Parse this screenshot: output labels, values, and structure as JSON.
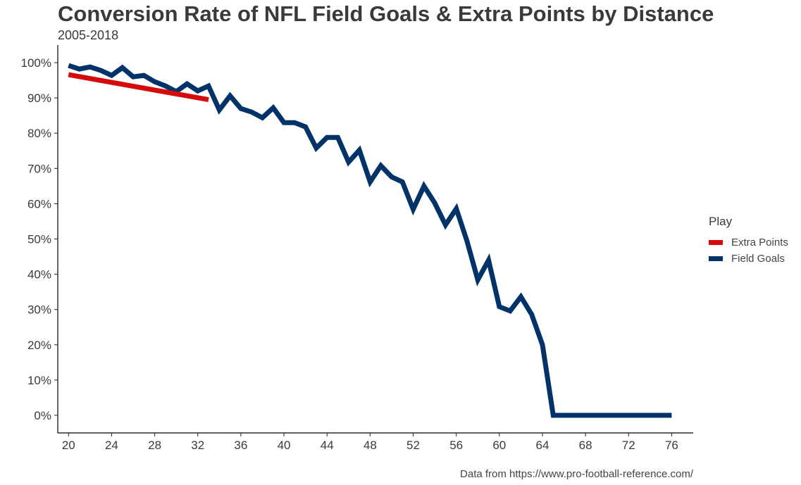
{
  "chart_data": {
    "type": "line",
    "title": "Conversion Rate of NFL Field Goals & Extra Points by Distance",
    "subtitle": "2005-2018",
    "caption": "Data from https://www.pro-football-reference.com/",
    "xlabel": "",
    "ylabel": "",
    "xlim": [
      19,
      78
    ],
    "ylim": [
      -0.05,
      1.05
    ],
    "x_ticks": [
      20,
      24,
      28,
      32,
      36,
      40,
      44,
      48,
      52,
      56,
      60,
      64,
      68,
      72,
      76
    ],
    "x_tick_labels": [
      "20",
      "24",
      "28",
      "32",
      "36",
      "40",
      "44",
      "48",
      "52",
      "56",
      "60",
      "64",
      "68",
      "72",
      "76"
    ],
    "y_ticks": [
      0,
      0.1,
      0.2,
      0.3,
      0.4,
      0.5,
      0.6,
      0.7,
      0.8,
      0.9,
      1.0
    ],
    "y_tick_labels": [
      "0%",
      "10%",
      "20%",
      "30%",
      "40%",
      "50%",
      "60%",
      "70%",
      "80%",
      "90%",
      "100%"
    ],
    "grid": false,
    "legend": {
      "title": "Play",
      "position": "right"
    },
    "series": [
      {
        "name": "Extra Points",
        "color": "#d50a0a",
        "x": [
          20,
          33
        ],
        "y": [
          0.966,
          0.895
        ]
      },
      {
        "name": "Field Goals",
        "color": "#013369",
        "x": [
          20,
          21,
          22,
          23,
          24,
          25,
          26,
          27,
          28,
          29,
          30,
          31,
          32,
          33,
          34,
          35,
          36,
          37,
          38,
          39,
          40,
          41,
          42,
          43,
          44,
          45,
          46,
          47,
          48,
          49,
          50,
          51,
          52,
          53,
          54,
          55,
          56,
          57,
          58,
          59,
          60,
          61,
          62,
          63,
          64,
          65,
          66,
          67,
          68,
          69,
          70,
          71,
          72,
          73,
          74,
          75,
          76
        ],
        "y": [
          0.992,
          0.982,
          0.988,
          0.978,
          0.964,
          0.986,
          0.96,
          0.964,
          0.946,
          0.934,
          0.918,
          0.94,
          0.92,
          0.934,
          0.866,
          0.906,
          0.87,
          0.86,
          0.844,
          0.872,
          0.83,
          0.83,
          0.818,
          0.758,
          0.788,
          0.788,
          0.718,
          0.752,
          0.662,
          0.708,
          0.676,
          0.662,
          0.584,
          0.65,
          0.602,
          0.54,
          0.586,
          0.494,
          0.384,
          0.44,
          0.308,
          0.296,
          0.336,
          0.286,
          0.2,
          0.0,
          0.0,
          0.0,
          0.0,
          0.0,
          0.0,
          0.0,
          0.0,
          0.0,
          0.0,
          0.0,
          0.0
        ]
      }
    ]
  }
}
